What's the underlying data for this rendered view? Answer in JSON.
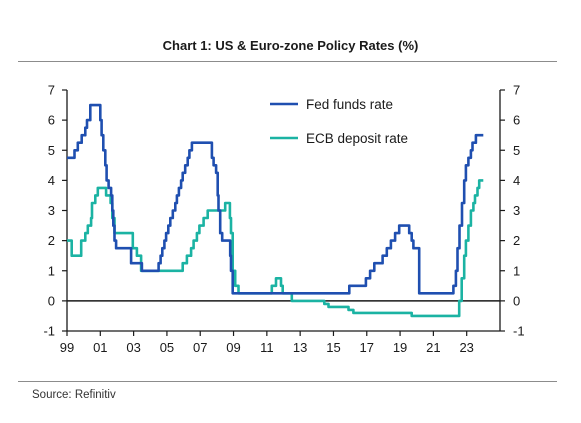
{
  "chart_data": {
    "type": "line",
    "title": "Chart 1: US & Euro-zone Policy Rates (%)",
    "source": "Source: Refinitiv",
    "xlabel": "",
    "ylabel": "",
    "xlim": [
      1999.0,
      2025.0
    ],
    "ylim": [
      -1,
      7
    ],
    "x_ticks": [
      {
        "value": 1999,
        "label": "99"
      },
      {
        "value": 2001,
        "label": "01"
      },
      {
        "value": 2003,
        "label": "03"
      },
      {
        "value": 2005,
        "label": "05"
      },
      {
        "value": 2007,
        "label": "07"
      },
      {
        "value": 2009,
        "label": "09"
      },
      {
        "value": 2011,
        "label": "11"
      },
      {
        "value": 2013,
        "label": "13"
      },
      {
        "value": 2015,
        "label": "15"
      },
      {
        "value": 2017,
        "label": "17"
      },
      {
        "value": 2019,
        "label": "19"
      },
      {
        "value": 2021,
        "label": "21"
      },
      {
        "value": 2023,
        "label": "23"
      }
    ],
    "y_ticks": [
      {
        "value": -1,
        "label": "-1"
      },
      {
        "value": 0,
        "label": "0"
      },
      {
        "value": 1,
        "label": "1"
      },
      {
        "value": 2,
        "label": "2"
      },
      {
        "value": 3,
        "label": "3"
      },
      {
        "value": 4,
        "label": "4"
      },
      {
        "value": 5,
        "label": "5"
      },
      {
        "value": 6,
        "label": "6"
      },
      {
        "value": 7,
        "label": "7"
      }
    ],
    "grid": false,
    "legend": "top-center",
    "series": [
      {
        "name": "Fed funds rate",
        "color": "#1f4fb0",
        "step": true,
        "points": [
          [
            1999.0,
            4.75
          ],
          [
            1999.45,
            5.0
          ],
          [
            1999.65,
            5.25
          ],
          [
            1999.88,
            5.5
          ],
          [
            2000.1,
            5.75
          ],
          [
            2000.2,
            6.0
          ],
          [
            2000.4,
            6.5
          ],
          [
            2001.0,
            6.0
          ],
          [
            2001.08,
            5.5
          ],
          [
            2001.18,
            5.0
          ],
          [
            2001.3,
            4.5
          ],
          [
            2001.38,
            4.0
          ],
          [
            2001.5,
            3.75
          ],
          [
            2001.65,
            3.5
          ],
          [
            2001.72,
            3.0
          ],
          [
            2001.78,
            2.5
          ],
          [
            2001.85,
            2.0
          ],
          [
            2001.95,
            1.75
          ],
          [
            2002.85,
            1.25
          ],
          [
            2003.5,
            1.0
          ],
          [
            2004.5,
            1.25
          ],
          [
            2004.62,
            1.5
          ],
          [
            2004.72,
            1.75
          ],
          [
            2004.85,
            2.0
          ],
          [
            2004.95,
            2.25
          ],
          [
            2005.08,
            2.5
          ],
          [
            2005.2,
            2.75
          ],
          [
            2005.35,
            3.0
          ],
          [
            2005.5,
            3.25
          ],
          [
            2005.6,
            3.5
          ],
          [
            2005.72,
            3.75
          ],
          [
            2005.85,
            4.0
          ],
          [
            2005.95,
            4.25
          ],
          [
            2006.1,
            4.5
          ],
          [
            2006.25,
            4.75
          ],
          [
            2006.35,
            5.0
          ],
          [
            2006.5,
            5.25
          ],
          [
            2007.7,
            4.75
          ],
          [
            2007.8,
            4.5
          ],
          [
            2007.95,
            4.25
          ],
          [
            2008.05,
            3.5
          ],
          [
            2008.1,
            3.0
          ],
          [
            2008.2,
            2.25
          ],
          [
            2008.32,
            2.0
          ],
          [
            2008.8,
            1.5
          ],
          [
            2008.85,
            1.0
          ],
          [
            2008.95,
            0.25
          ],
          [
            2015.95,
            0.5
          ],
          [
            2016.95,
            0.75
          ],
          [
            2017.2,
            1.0
          ],
          [
            2017.45,
            1.25
          ],
          [
            2017.95,
            1.5
          ],
          [
            2018.2,
            1.75
          ],
          [
            2018.45,
            2.0
          ],
          [
            2018.7,
            2.25
          ],
          [
            2018.95,
            2.5
          ],
          [
            2019.55,
            2.25
          ],
          [
            2019.7,
            2.0
          ],
          [
            2019.8,
            1.75
          ],
          [
            2020.15,
            0.25
          ],
          [
            2022.2,
            0.5
          ],
          [
            2022.35,
            1.0
          ],
          [
            2022.45,
            1.75
          ],
          [
            2022.57,
            2.5
          ],
          [
            2022.72,
            3.25
          ],
          [
            2022.85,
            4.0
          ],
          [
            2022.95,
            4.5
          ],
          [
            2023.1,
            4.75
          ],
          [
            2023.25,
            5.0
          ],
          [
            2023.35,
            5.25
          ],
          [
            2023.55,
            5.5
          ],
          [
            2024.0,
            5.5
          ]
        ]
      },
      {
        "name": "ECB deposit rate",
        "color": "#1bb3a3",
        "step": true,
        "points": [
          [
            1999.0,
            2.0
          ],
          [
            1999.28,
            1.5
          ],
          [
            1999.85,
            2.0
          ],
          [
            2000.1,
            2.25
          ],
          [
            2000.25,
            2.5
          ],
          [
            2000.45,
            2.75
          ],
          [
            2000.5,
            3.25
          ],
          [
            2000.7,
            3.5
          ],
          [
            2000.85,
            3.75
          ],
          [
            2001.35,
            3.5
          ],
          [
            2001.62,
            3.25
          ],
          [
            2001.72,
            2.75
          ],
          [
            2001.85,
            2.25
          ],
          [
            2002.95,
            1.75
          ],
          [
            2003.2,
            1.5
          ],
          [
            2003.45,
            1.0
          ],
          [
            2005.95,
            1.25
          ],
          [
            2006.2,
            1.5
          ],
          [
            2006.45,
            1.75
          ],
          [
            2006.6,
            2.0
          ],
          [
            2006.8,
            2.25
          ],
          [
            2006.95,
            2.5
          ],
          [
            2007.2,
            2.75
          ],
          [
            2007.45,
            3.0
          ],
          [
            2008.5,
            3.25
          ],
          [
            2008.78,
            2.75
          ],
          [
            2008.85,
            2.25
          ],
          [
            2008.95,
            1.0
          ],
          [
            2009.1,
            0.5
          ],
          [
            2009.3,
            0.25
          ],
          [
            2011.3,
            0.5
          ],
          [
            2011.55,
            0.75
          ],
          [
            2011.85,
            0.5
          ],
          [
            2011.95,
            0.25
          ],
          [
            2012.5,
            0.0
          ],
          [
            2014.45,
            -0.1
          ],
          [
            2014.7,
            -0.2
          ],
          [
            2015.9,
            -0.3
          ],
          [
            2016.2,
            -0.4
          ],
          [
            2019.7,
            -0.5
          ],
          [
            2022.55,
            0.0
          ],
          [
            2022.7,
            0.75
          ],
          [
            2022.85,
            1.5
          ],
          [
            2022.95,
            2.0
          ],
          [
            2023.1,
            2.5
          ],
          [
            2023.25,
            3.0
          ],
          [
            2023.4,
            3.25
          ],
          [
            2023.5,
            3.5
          ],
          [
            2023.65,
            3.75
          ],
          [
            2023.75,
            4.0
          ],
          [
            2024.0,
            4.0
          ]
        ]
      }
    ]
  }
}
